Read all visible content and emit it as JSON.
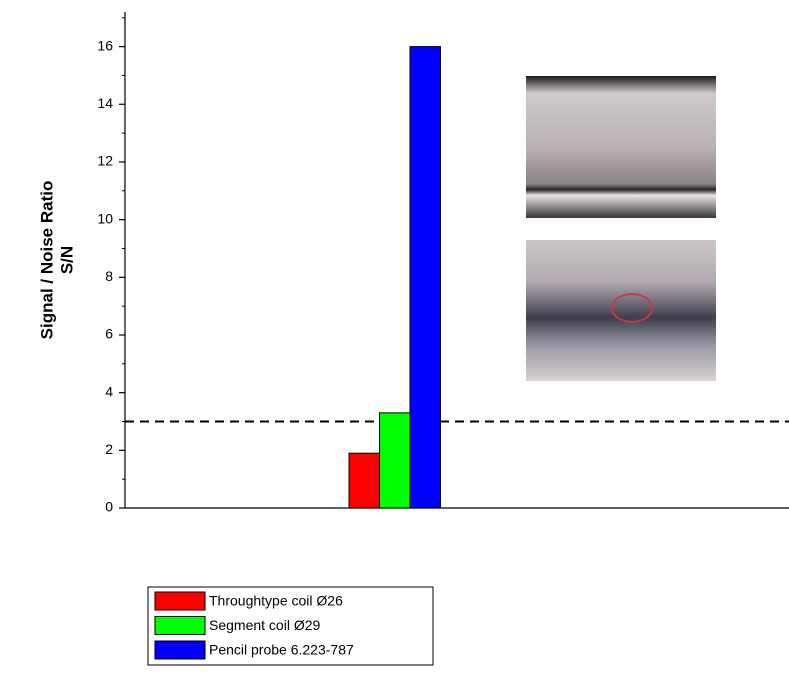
{
  "chart_data": {
    "type": "bar",
    "ylabel": [
      "Signal / Noise Ratio",
      "S/N"
    ],
    "categories": [
      null
    ],
    "series": [
      {
        "name": "Throughtype coil Ø26",
        "color": "#ff0000",
        "values": [
          1.9
        ]
      },
      {
        "name": "Segment coil Ø29",
        "color": "#00ff00",
        "values": [
          3.3
        ]
      },
      {
        "name": "Pencil probe 6.223-787",
        "color": "#0000ff",
        "values": [
          16
        ]
      }
    ],
    "ylim": [
      0,
      17.2
    ],
    "yticks": [
      0,
      2,
      4,
      6,
      8,
      10,
      12,
      14,
      16
    ],
    "yminorticks": [
      1,
      3,
      5,
      7,
      9,
      11,
      13,
      15,
      17
    ],
    "threshold": 3
  }
}
